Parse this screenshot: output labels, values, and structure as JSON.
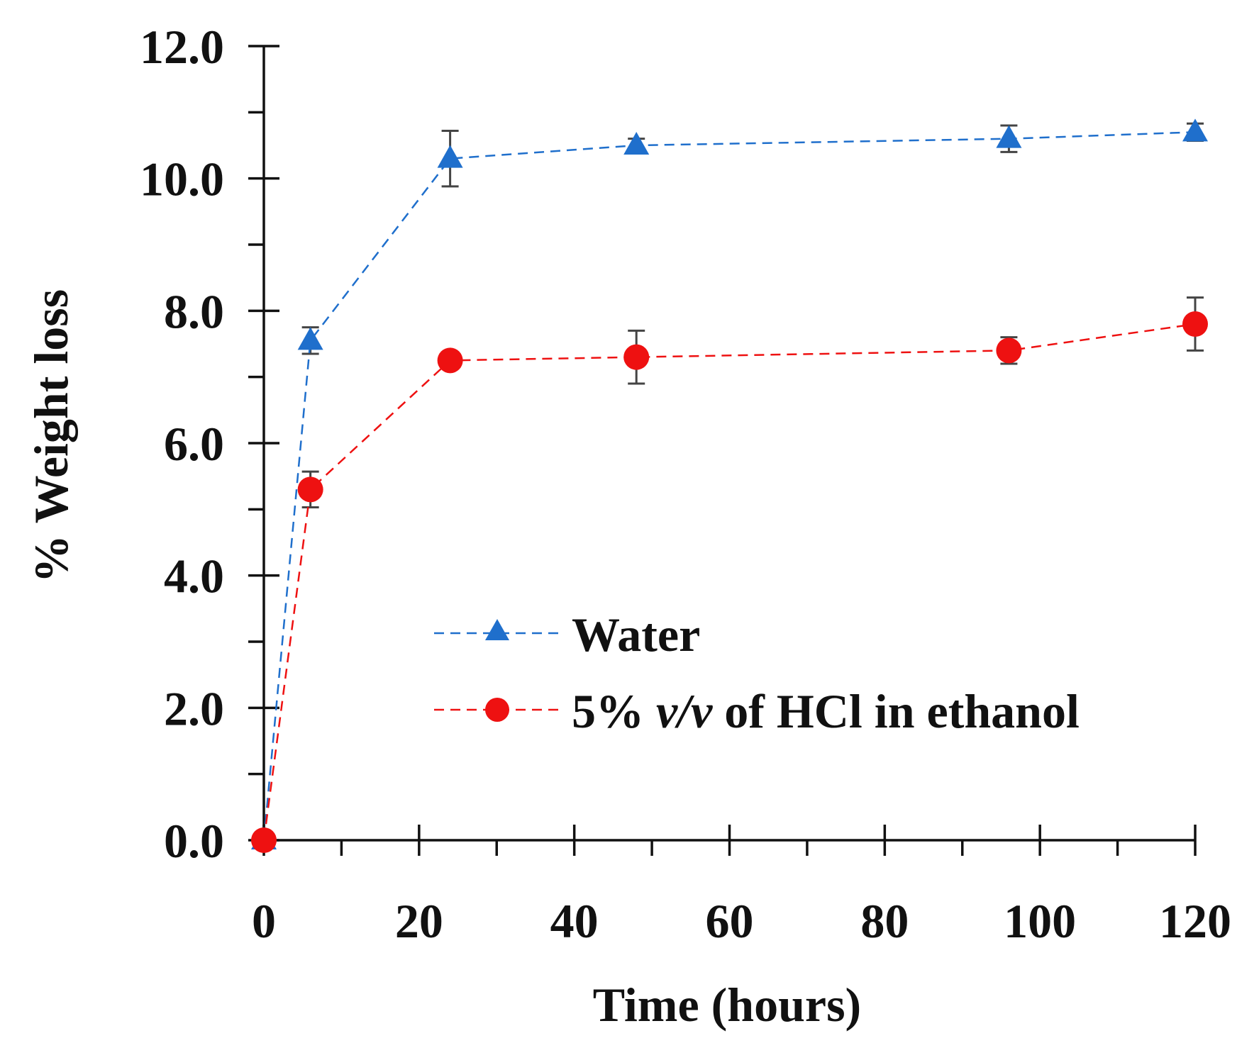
{
  "chart_data": {
    "type": "line",
    "title": "",
    "xlabel": "Time (hours)",
    "ylabel": "% Weight loss",
    "xlim": [
      0,
      120
    ],
    "ylim": [
      0,
      12
    ],
    "x_major_ticks": [
      0,
      20,
      40,
      60,
      80,
      100,
      120
    ],
    "x_minor_ticks": [
      10,
      30,
      50,
      70,
      90,
      110
    ],
    "x_tick_labels": [
      "0",
      "20",
      "40",
      "60",
      "80",
      "100",
      "120"
    ],
    "y_major_ticks": [
      0,
      2,
      4,
      6,
      8,
      10,
      12
    ],
    "y_minor_ticks": [
      1,
      3,
      5,
      7,
      9,
      11
    ],
    "y_tick_labels": [
      "0.0",
      "2.0",
      "4.0",
      "6.0",
      "8.0",
      "10.0",
      "12.0"
    ],
    "grid": false,
    "legend_position": "center-right",
    "series": [
      {
        "name": "Water",
        "color": "#1f6fcc",
        "marker": "triangle",
        "line_style": "dashed",
        "x": [
          0,
          6,
          24,
          48,
          96,
          120
        ],
        "y": [
          0.0,
          7.55,
          10.3,
          10.5,
          10.6,
          10.7
        ],
        "error": [
          0,
          0.2,
          0.42,
          0.1,
          0.2,
          0.13
        ]
      },
      {
        "name": "5% v/v of HCl in ethanol",
        "color": "#ee1111",
        "marker": "circle",
        "line_style": "dashed",
        "x": [
          0,
          6,
          24,
          48,
          96,
          120
        ],
        "y": [
          0.0,
          5.3,
          7.25,
          7.3,
          7.4,
          7.8
        ],
        "error": [
          0,
          0.27,
          0.05,
          0.4,
          0.2,
          0.4
        ]
      }
    ],
    "legend": {
      "water_label": "Water",
      "hcl_prefix": "5% ",
      "hcl_italic": "v/v",
      "hcl_suffix": " of HCl in ethanol"
    }
  }
}
